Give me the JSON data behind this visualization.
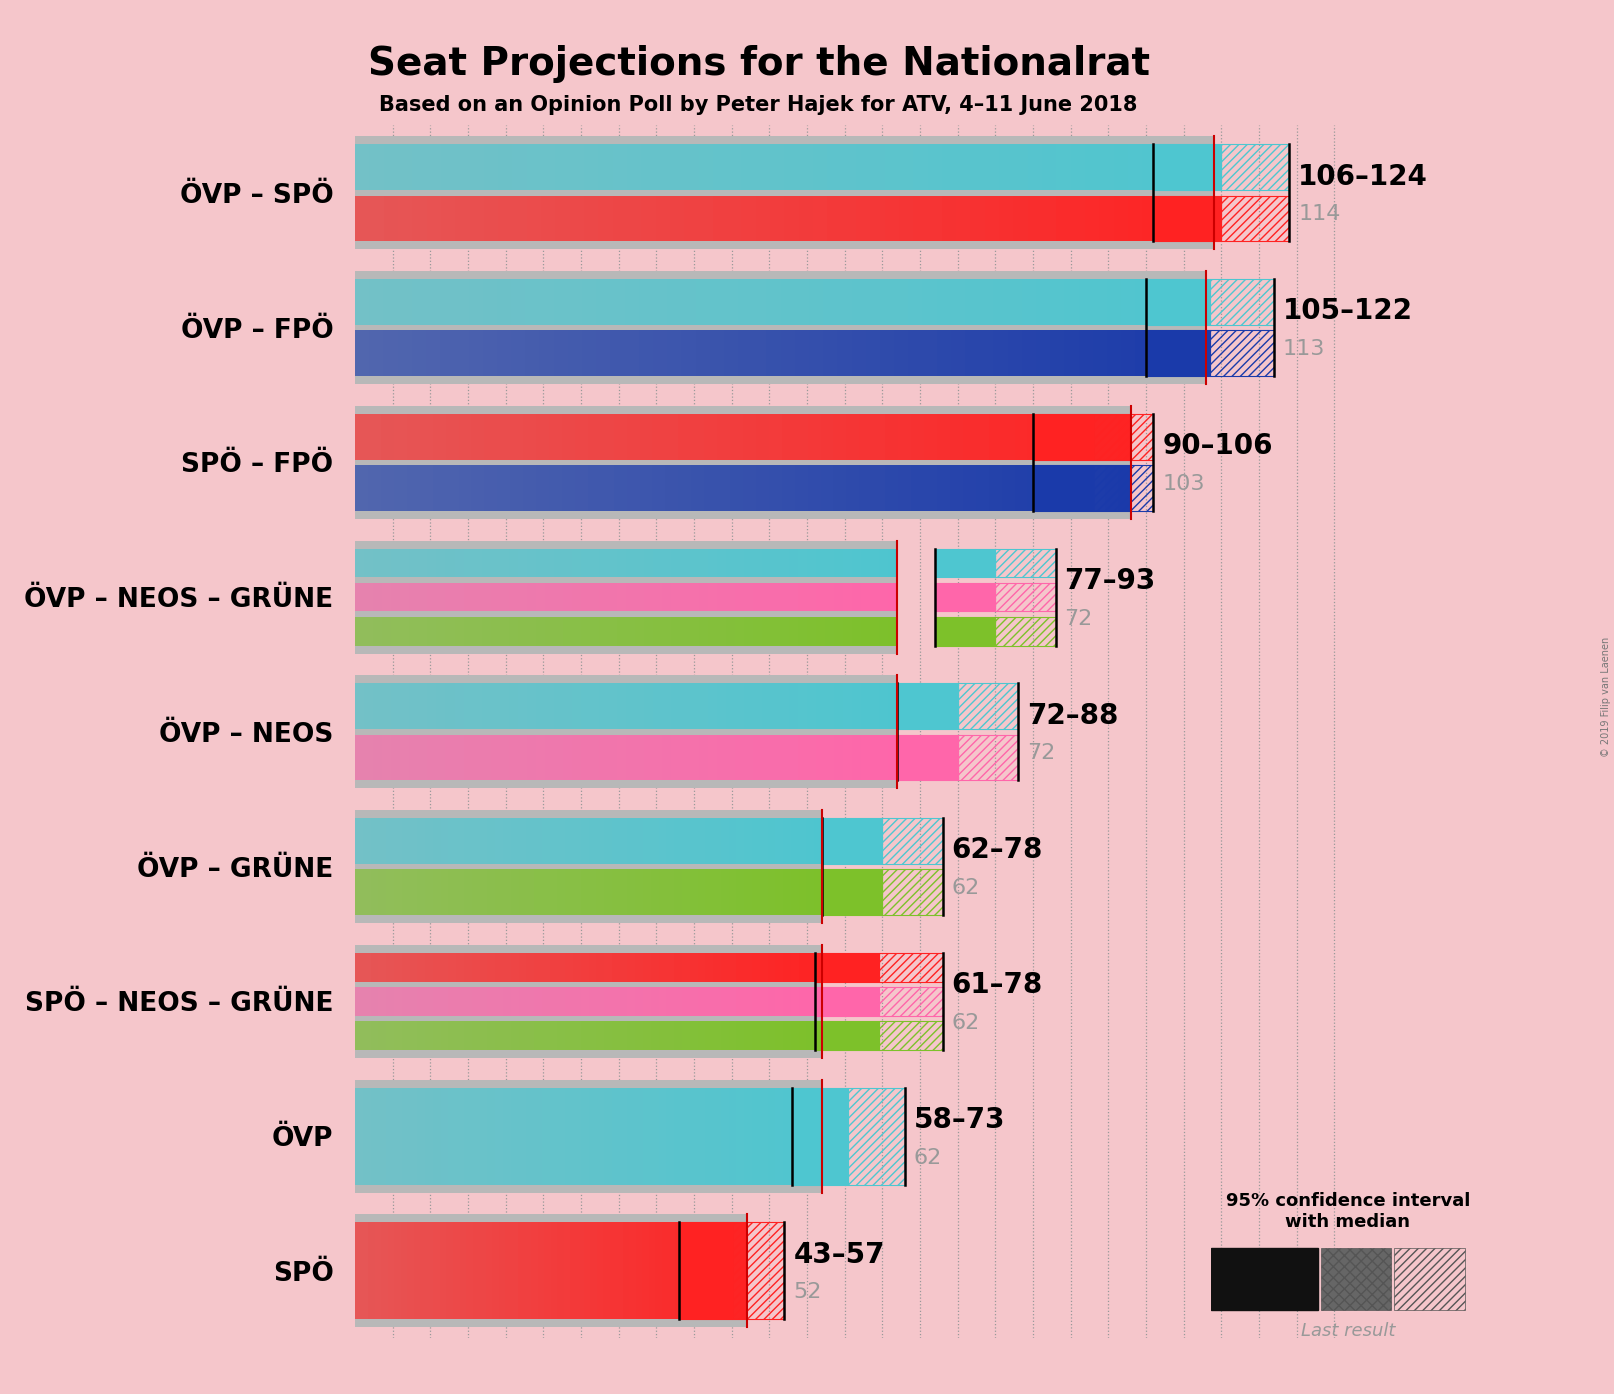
{
  "title": "Seat Projections for the Nationalrat",
  "subtitle": "Based on an Opinion Poll by Peter Hajek for ATV, 4–11 June 2018",
  "background_color": "#f5c6cb",
  "coalitions": [
    {
      "name": "ÖVP – SPÖ",
      "parties": [
        "ÖVP",
        "SPÖ"
      ],
      "colors": [
        "#4ec6d0",
        "#ff2222"
      ],
      "median": 114,
      "ci_low": 106,
      "ci_high": 124,
      "last_result": 114
    },
    {
      "name": "ÖVP – FPÖ",
      "parties": [
        "ÖVP",
        "FPÖ"
      ],
      "colors": [
        "#4ec6d0",
        "#1a3aaa"
      ],
      "median": 113,
      "ci_low": 105,
      "ci_high": 122,
      "last_result": 113
    },
    {
      "name": "SPÖ – FPÖ",
      "parties": [
        "SPÖ",
        "FPÖ"
      ],
      "colors": [
        "#ff2222",
        "#1a3aaa"
      ],
      "median": 103,
      "ci_low": 90,
      "ci_high": 106,
      "last_result": 103
    },
    {
      "name": "ÖVP – NEOS – GRÜNE",
      "parties": [
        "ÖVP",
        "NEOS",
        "GRÜNE"
      ],
      "colors": [
        "#4ec6d0",
        "#ff66aa",
        "#7dc12a"
      ],
      "median": 72,
      "ci_low": 77,
      "ci_high": 93,
      "last_result": 72
    },
    {
      "name": "ÖVP – NEOS",
      "parties": [
        "ÖVP",
        "NEOS"
      ],
      "colors": [
        "#4ec6d0",
        "#ff66aa"
      ],
      "median": 72,
      "ci_low": 72,
      "ci_high": 88,
      "last_result": 72
    },
    {
      "name": "ÖVP – GRÜNE",
      "parties": [
        "ÖVP",
        "GRÜNE"
      ],
      "colors": [
        "#4ec6d0",
        "#7dc12a"
      ],
      "median": 62,
      "ci_low": 62,
      "ci_high": 78,
      "last_result": 62
    },
    {
      "name": "SPÖ – NEOS – GRÜNE",
      "parties": [
        "SPÖ",
        "NEOS",
        "GRÜNE"
      ],
      "colors": [
        "#ff2222",
        "#ff66aa",
        "#7dc12a"
      ],
      "median": 62,
      "ci_low": 61,
      "ci_high": 78,
      "last_result": 62
    },
    {
      "name": "ÖVP",
      "parties": [
        "ÖVP"
      ],
      "colors": [
        "#4ec6d0"
      ],
      "median": 62,
      "ci_low": 58,
      "ci_high": 73,
      "last_result": 62
    },
    {
      "name": "SPÖ",
      "parties": [
        "SPÖ"
      ],
      "colors": [
        "#ff2222"
      ],
      "median": 52,
      "ci_low": 43,
      "ci_high": 57,
      "last_result": 52
    }
  ],
  "xlim_max": 135,
  "title_fontsize": 28,
  "subtitle_fontsize": 15,
  "label_fontsize": 19,
  "annotation_fontsize": 20,
  "median_fontsize": 16,
  "median_line_color": "#cc0000",
  "copyright_text": "© 2019 Filip van Laenen",
  "legend_text": "95% confidence interval\nwith median",
  "last_result_text": "Last result"
}
